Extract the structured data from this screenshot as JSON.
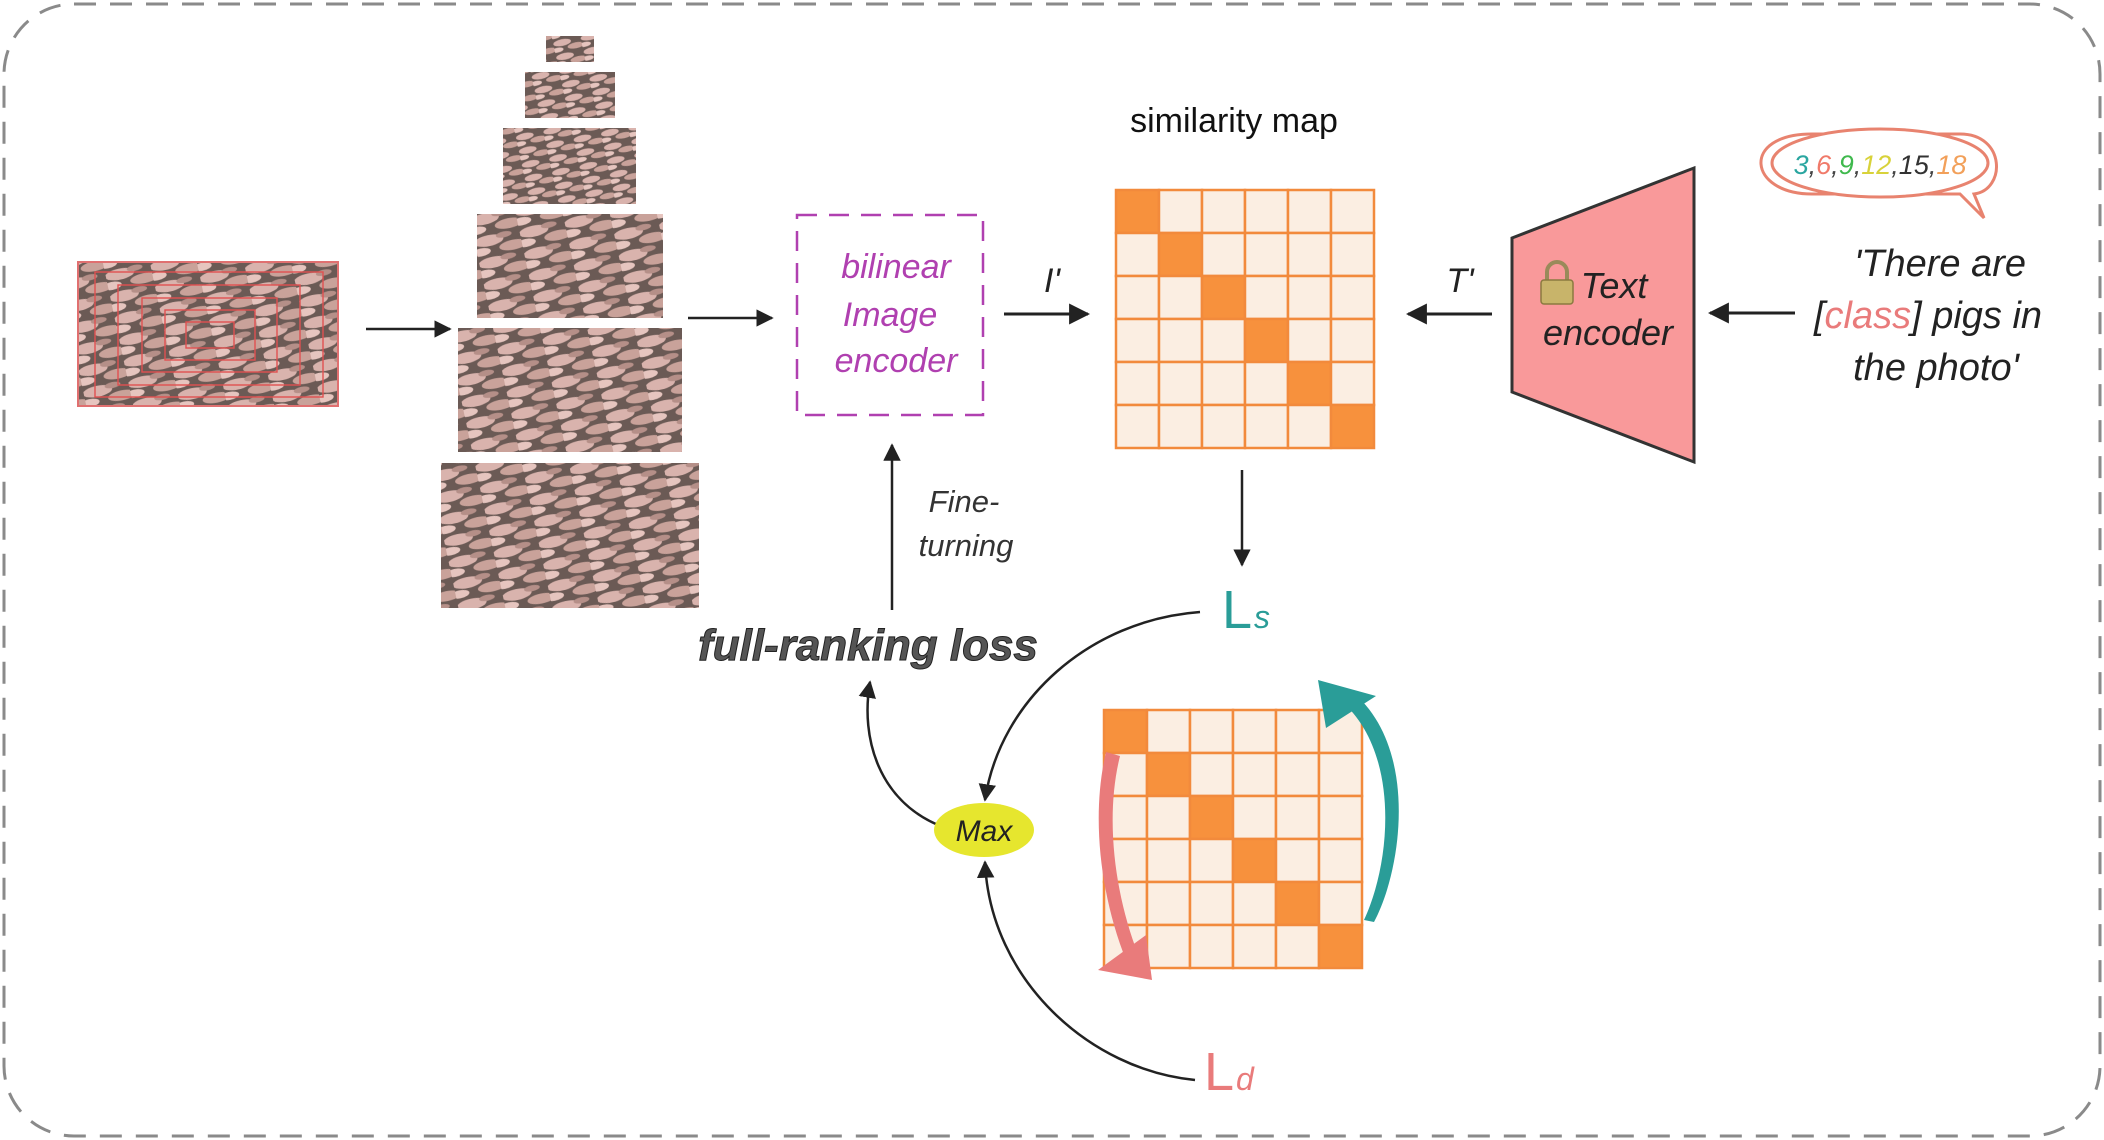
{
  "labels": {
    "similarity_map": "similarity map",
    "encoder_line1": "bilinear",
    "encoder_line2": "Image",
    "encoder_line3": "encoder",
    "i_prime": "I'",
    "t_prime": "T'",
    "text_encoder_line1": "Text",
    "text_encoder_line2": "encoder",
    "fine_line1": "Fine-",
    "fine_line2": "turning",
    "loss": "full-ranking loss",
    "max": "Max",
    "ls_main": "L",
    "ls_sub": "s",
    "ld_main": "L",
    "ld_sub": "d",
    "prompt_line1": "'There are",
    "prompt_class_open": "[",
    "prompt_class": "class",
    "prompt_class_close": "] pigs in",
    "prompt_line3": "the photo'"
  },
  "class_numbers": [
    {
      "text": "3",
      "color": "#2aa6a0"
    },
    {
      "text": ",",
      "color": "#444444"
    },
    {
      "text": "6",
      "color": "#f07a6a"
    },
    {
      "text": ",",
      "color": "#444444"
    },
    {
      "text": "9",
      "color": "#3fb94d"
    },
    {
      "text": ",",
      "color": "#444444"
    },
    {
      "text": "12",
      "color": "#d8d23a"
    },
    {
      "text": ",",
      "color": "#444444"
    },
    {
      "text": "15",
      "color": "#333333"
    },
    {
      "text": ",",
      "color": "#444444"
    },
    {
      "text": "18",
      "color": "#f2a05a"
    }
  ],
  "colors": {
    "matrix_fill": "#fbeee2",
    "matrix_diag": "#f7913d",
    "matrix_stroke": "#f28a3c",
    "encoder_dash": "#b040b0",
    "text_encoder_fill": "#f9999a",
    "ls_color": "#2a9d98",
    "ld_color": "#e97b7b",
    "max_fill": "#e6e62e",
    "bubble_stroke": "#e8836f"
  },
  "matrix_size": 6,
  "icons": {
    "lock": "lock-icon",
    "pig_photo": "pig-photo"
  }
}
